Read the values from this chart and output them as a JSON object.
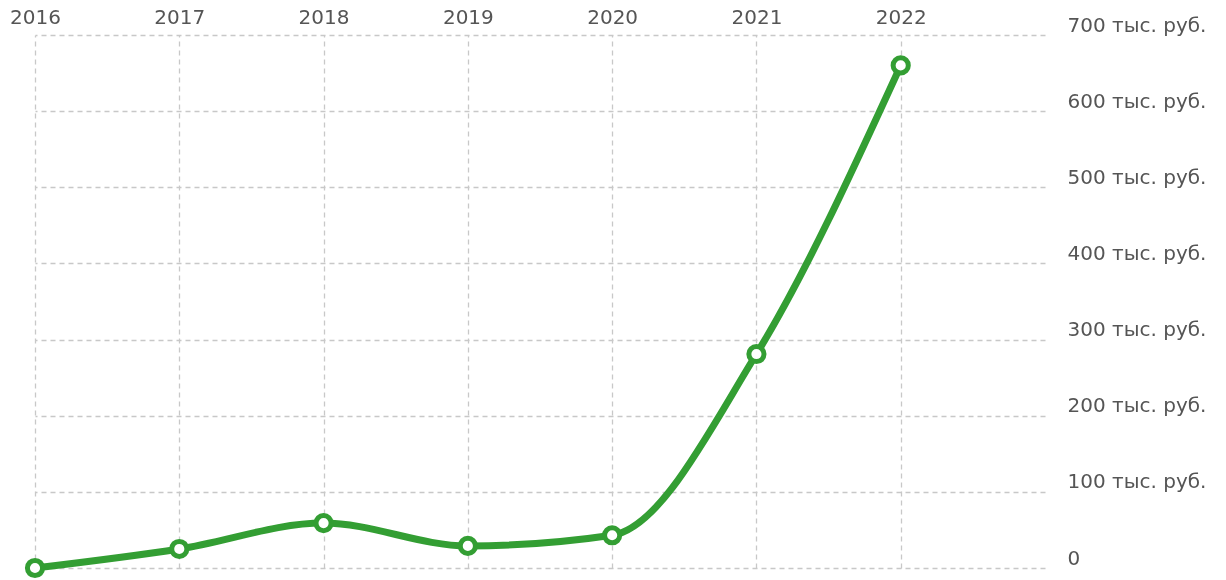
{
  "chart_data": {
    "type": "line",
    "x": [
      2016,
      2017,
      2018,
      2019,
      2020,
      2021,
      2022
    ],
    "series": [
      {
        "color": "#339e33",
        "values": [
          0,
          25,
          59,
          29,
          43,
          281,
          660
        ]
      }
    ],
    "xlim": [
      2016,
      2023
    ],
    "xticks": [
      2016,
      2017,
      2018,
      2019,
      2020,
      2021,
      2022
    ],
    "ylim": [
      0,
      700
    ],
    "yticks": [
      0,
      {
        "value": 100,
        "label": "100 тыс. руб."
      },
      {
        "value": 200,
        "label": "200 тыс. руб."
      },
      {
        "value": 300,
        "label": "300 тыс. руб."
      },
      {
        "value": 400,
        "label": "400 тыс. руб."
      },
      {
        "value": 500,
        "label": "500 тыс. руб."
      },
      {
        "value": 600,
        "label": "600 тыс. руб."
      },
      {
        "value": 700,
        "label": "700 тыс. руб."
      }
    ],
    "grid": true,
    "marker": "circle",
    "line_style": "solid"
  }
}
